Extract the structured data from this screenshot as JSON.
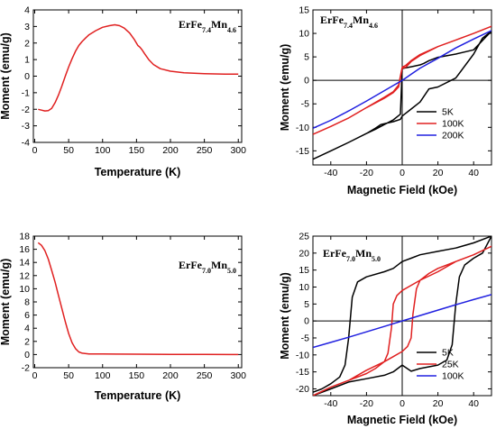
{
  "chart_data": [
    {
      "type": "line",
      "panel": "top-left",
      "annotation": "ErFe7.4Mn4.6",
      "xlabel": "Temperature (K)",
      "ylabel": "Moment (emu/g)",
      "xlim": [
        -2,
        305
      ],
      "ylim": [
        -4,
        4
      ],
      "xticks": [
        0,
        50,
        100,
        150,
        200,
        250,
        300
      ],
      "yticks": [
        -4,
        -3,
        -2,
        -1,
        0,
        1,
        2,
        3,
        4
      ],
      "grid": false,
      "series": [
        {
          "color": "#e02020",
          "x": [
            5,
            10,
            15,
            20,
            25,
            30,
            35,
            40,
            45,
            50,
            55,
            60,
            65,
            70,
            75,
            80,
            90,
            100,
            110,
            118,
            125,
            132,
            140,
            147,
            152,
            155,
            158,
            162,
            168,
            175,
            185,
            200,
            220,
            250,
            280,
            300
          ],
          "y": [
            -2.0,
            -2.05,
            -2.1,
            -2.08,
            -1.95,
            -1.6,
            -1.15,
            -0.6,
            0.0,
            0.55,
            1.05,
            1.5,
            1.85,
            2.1,
            2.3,
            2.5,
            2.75,
            2.95,
            3.05,
            3.1,
            3.05,
            2.9,
            2.6,
            2.2,
            1.85,
            1.75,
            1.6,
            1.35,
            1.0,
            0.7,
            0.45,
            0.3,
            0.2,
            0.15,
            0.12,
            0.12
          ]
        }
      ]
    },
    {
      "type": "line",
      "panel": "top-right",
      "annotation": "ErFe7.4Mn4.6",
      "xlabel": "Magnetic Field (kOe)",
      "ylabel": "Moment (emu/g)",
      "xlim": [
        -50,
        50
      ],
      "ylim": [
        -18,
        15
      ],
      "xticks": [
        -40,
        -20,
        0,
        20,
        40
      ],
      "yticks": [
        -15,
        -10,
        -5,
        0,
        5,
        10,
        15
      ],
      "grid": false,
      "legend": "bottom-right",
      "series": [
        {
          "name": "5K",
          "color": "#000000",
          "x": [
            -50,
            -40,
            -30,
            -20,
            -15,
            -10,
            -5,
            -1,
            0,
            1,
            5,
            10,
            12,
            15,
            20,
            30,
            40,
            45,
            50,
            45,
            40,
            30,
            20,
            15,
            10,
            5,
            1,
            0,
            -1,
            -5,
            -12,
            -15,
            -20,
            -30,
            -40,
            -50
          ],
          "y": [
            -16.8,
            -15.0,
            -13.2,
            -11.3,
            -10.4,
            -9.4,
            -8.4,
            -7.2,
            2.5,
            2.6,
            2.9,
            3.3,
            3.6,
            4.2,
            4.9,
            5.6,
            6.5,
            8.5,
            10.5,
            9.0,
            5.6,
            0.5,
            -1.4,
            -1.8,
            -4.6,
            -6.1,
            -7.3,
            -7.6,
            -8.3,
            -8.8,
            -9.4,
            -10.2,
            -11.3,
            -13.2,
            -15.0,
            -16.8
          ]
        },
        {
          "name": "100K",
          "color": "#e02020",
          "x": [
            -50,
            -40,
            -30,
            -20,
            -10,
            -5,
            -2,
            0,
            2,
            5,
            10,
            20,
            30,
            40,
            50,
            40,
            30,
            20,
            10,
            5,
            2,
            0,
            -2,
            -5,
            -10,
            -20,
            -30,
            -40,
            -50
          ],
          "y": [
            -11.5,
            -9.8,
            -8.0,
            -5.8,
            -3.6,
            -2.4,
            -1.0,
            2.8,
            3.2,
            4.2,
            5.5,
            7.2,
            8.6,
            10.0,
            11.5,
            10.0,
            8.6,
            7.2,
            5.3,
            4.0,
            2.8,
            2.6,
            -1.4,
            -2.6,
            -3.8,
            -5.8,
            -8.0,
            -9.8,
            -11.5
          ]
        },
        {
          "name": "200K",
          "color": "#2020e0",
          "x": [
            -50,
            -40,
            -30,
            -20,
            -10,
            -5,
            0,
            5,
            10,
            20,
            30,
            40,
            50
          ],
          "y": [
            -10.2,
            -8.5,
            -6.5,
            -4.4,
            -2.2,
            -1.1,
            0.0,
            1.3,
            2.6,
            4.7,
            6.9,
            8.8,
            10.6
          ]
        }
      ]
    },
    {
      "type": "line",
      "panel": "bottom-left",
      "annotation": "ErFe7.0Mn5.0",
      "xlabel": "Temperature (K)",
      "ylabel": "Moment (emu/g)",
      "xlim": [
        -2,
        305
      ],
      "ylim": [
        -2,
        18
      ],
      "xticks": [
        0,
        50,
        100,
        150,
        200,
        250,
        300
      ],
      "yticks": [
        -2,
        0,
        2,
        4,
        6,
        8,
        10,
        12,
        14,
        16,
        18
      ],
      "grid": false,
      "series": [
        {
          "color": "#e02020",
          "x": [
            5,
            10,
            15,
            20,
            25,
            30,
            35,
            40,
            45,
            50,
            55,
            60,
            65,
            70,
            80,
            100,
            150,
            200,
            250,
            300
          ],
          "y": [
            17.0,
            16.6,
            15.8,
            14.5,
            12.8,
            11.0,
            9.0,
            7.0,
            5.0,
            3.2,
            1.8,
            0.9,
            0.4,
            0.2,
            0.1,
            0.08,
            0.05,
            0.03,
            0.02,
            0.0
          ]
        }
      ]
    },
    {
      "type": "line",
      "panel": "bottom-right",
      "annotation": "ErFe7.0Mn5.0",
      "xlabel": "Magnetic Field (kOe)",
      "ylabel": "Moment (emu/g)",
      "xlim": [
        -50,
        50
      ],
      "ylim": [
        -22,
        25
      ],
      "xticks": [
        -40,
        -20,
        0,
        20,
        40
      ],
      "yticks": [
        -20,
        -15,
        -10,
        -5,
        0,
        5,
        10,
        15,
        20,
        25
      ],
      "grid": false,
      "legend": "bottom-right",
      "series": [
        {
          "name": "5K",
          "color": "#000000",
          "x": [
            -50,
            -45,
            -40,
            -35,
            -32,
            -30,
            -28,
            -25,
            -20,
            -10,
            -5,
            0,
            5,
            10,
            20,
            30,
            40,
            50,
            45,
            40,
            35,
            32,
            30,
            28,
            25,
            20,
            10,
            5,
            0,
            -5,
            -10,
            -20,
            -30,
            -40,
            -50
          ],
          "y": [
            -21.0,
            -20.0,
            -18.5,
            -16.5,
            -13.0,
            -5.0,
            7.0,
            11.5,
            13.0,
            14.5,
            15.5,
            17.5,
            18.5,
            19.5,
            20.5,
            21.5,
            23.0,
            25.0,
            20.0,
            18.5,
            16.5,
            13.0,
            5.0,
            -7.0,
            -11.5,
            -13.0,
            -14.0,
            -14.8,
            -13.0,
            -15.0,
            -16.0,
            -17.0,
            -18.0,
            -20.0,
            -22.0
          ]
        },
        {
          "name": "25K",
          "color": "#e02020",
          "x": [
            -50,
            -40,
            -30,
            -20,
            -15,
            -10,
            -8,
            -6,
            -5,
            -3,
            0,
            5,
            10,
            20,
            30,
            40,
            50,
            40,
            30,
            20,
            15,
            10,
            8,
            6,
            5,
            3,
            0,
            -5,
            -10,
            -20,
            -30,
            -40,
            -50
          ],
          "y": [
            -22.0,
            -19.5,
            -17.5,
            -15.5,
            -14.0,
            -12.0,
            -9.5,
            -2.0,
            5.0,
            7.5,
            9.0,
            10.5,
            12.0,
            14.5,
            17.5,
            19.5,
            22.0,
            19.5,
            17.5,
            15.5,
            14.0,
            12.0,
            9.5,
            2.0,
            -5.0,
            -7.5,
            -9.0,
            -10.5,
            -12.0,
            -14.5,
            -17.5,
            -19.5,
            -22.0
          ]
        },
        {
          "name": "100K",
          "color": "#2020e0",
          "x": [
            -50,
            -40,
            -30,
            -20,
            -10,
            0,
            10,
            20,
            30,
            40,
            50
          ],
          "y": [
            -7.8,
            -6.3,
            -4.8,
            -3.2,
            -1.6,
            0.0,
            1.6,
            3.2,
            4.8,
            6.3,
            7.8
          ]
        }
      ]
    }
  ]
}
